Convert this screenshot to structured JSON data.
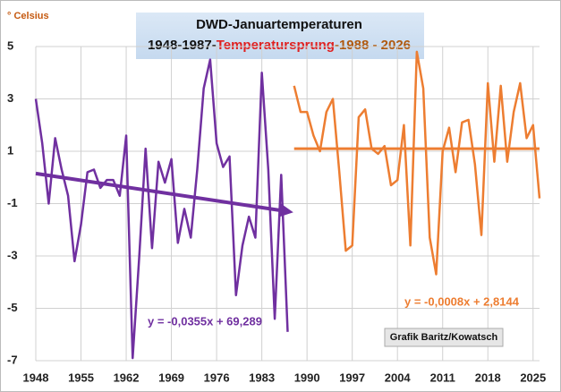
{
  "chart_data": {
    "type": "line",
    "title": "DWD-Januartemperaturen",
    "subtitle_parts": [
      {
        "text": "1948-1987-",
        "color": "#111111"
      },
      {
        "text": "Temperatursprung",
        "color": "#e02020"
      },
      {
        "text": "-1988 - 2026",
        "color": "#b05a10"
      }
    ],
    "y_label": "° Celsius",
    "xlim": [
      1948,
      2026
    ],
    "xticks": [
      1948,
      1955,
      1962,
      1969,
      1976,
      1983,
      1990,
      1997,
      2004,
      2011,
      2018,
      2025
    ],
    "ylim": [
      -7,
      5
    ],
    "yticks": [
      -7,
      -5,
      -3,
      -1,
      1,
      3,
      5
    ],
    "grid": true,
    "series": [
      {
        "color": "#7030a0",
        "x": [
          1948,
          1949,
          1950,
          1951,
          1952,
          1953,
          1954,
          1955,
          1956,
          1957,
          1958,
          1959,
          1960,
          1961,
          1962,
          1963,
          1964,
          1965,
          1966,
          1967,
          1968,
          1969,
          1970,
          1971,
          1972,
          1973,
          1974,
          1975,
          1976,
          1977,
          1978,
          1979,
          1980,
          1981,
          1982,
          1983,
          1984,
          1985,
          1986,
          1987
        ],
        "values": [
          3.0,
          1.3,
          -1.0,
          1.5,
          0.3,
          -0.7,
          -3.2,
          -1.8,
          0.2,
          0.3,
          -0.4,
          -0.1,
          -0.1,
          -0.7,
          1.6,
          -6.9,
          -3.1,
          1.1,
          -2.7,
          0.6,
          -0.2,
          0.7,
          -2.5,
          -1.2,
          -2.3,
          0.3,
          3.4,
          4.5,
          1.3,
          0.4,
          0.8,
          -4.5,
          -2.6,
          -1.5,
          -2.3,
          4.0,
          0.3,
          -5.4,
          0.1,
          -5.9
        ]
      },
      {
        "color": "#ed7d31",
        "x": [
          1988,
          1989,
          1990,
          1991,
          1992,
          1993,
          1994,
          1995,
          1996,
          1997,
          1998,
          1999,
          2000,
          2001,
          2002,
          2003,
          2004,
          2005,
          2006,
          2007,
          2008,
          2009,
          2010,
          2011,
          2012,
          2013,
          2014,
          2015,
          2016,
          2017,
          2018,
          2019,
          2020,
          2021,
          2022,
          2023,
          2024,
          2025,
          2026
        ],
        "values": [
          3.5,
          2.5,
          2.5,
          1.6,
          1.0,
          2.5,
          3.0,
          0.2,
          -2.8,
          -2.6,
          2.3,
          2.6,
          1.1,
          0.9,
          1.2,
          -0.3,
          -0.1,
          2.0,
          -2.6,
          4.8,
          3.4,
          -2.3,
          -3.7,
          1.0,
          1.9,
          0.2,
          2.1,
          2.2,
          0.5,
          -2.2,
          3.6,
          0.6,
          3.5,
          0.6,
          2.5,
          3.6,
          1.5,
          2.0,
          -0.8
        ]
      }
    ],
    "trendlines": [
      {
        "label": "y = -0,0355x + 69,289",
        "color": "#7030a0",
        "x": [
          1948,
          1987
        ],
        "values": [
          0.15,
          -1.3
        ]
      },
      {
        "label": "y = -0,0008x + 2,8144",
        "color": "#ed7d31",
        "x": [
          1988,
          2026
        ],
        "values": [
          1.1,
          1.1
        ]
      }
    ],
    "credit": "Grafik Baritz/Kowatsch"
  }
}
